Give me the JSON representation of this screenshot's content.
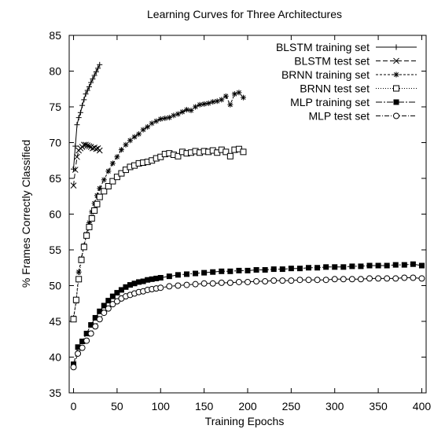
{
  "chart_data": {
    "type": "line",
    "title": "Learning Curves for Three Architectures",
    "xlabel": "Training Epochs",
    "ylabel": "% Frames Correctly Classified",
    "xlim": [
      -5,
      405
    ],
    "ylim": [
      35,
      85
    ],
    "xticks": [
      0,
      50,
      100,
      150,
      200,
      250,
      300,
      350,
      400
    ],
    "yticks": [
      35,
      40,
      45,
      50,
      55,
      60,
      65,
      70,
      75,
      80,
      85
    ],
    "grid": false,
    "legend_position": "top-right",
    "series": [
      {
        "name": "BLSTM training set",
        "marker": "plus",
        "dash": "",
        "x": [
          0,
          2,
          4,
          6,
          8,
          10,
          12,
          14,
          16,
          18,
          20,
          22,
          24,
          26,
          28,
          30
        ],
        "y": [
          66.3,
          69.5,
          72.5,
          73.5,
          74.2,
          75.2,
          76.0,
          76.8,
          77.3,
          77.8,
          78.4,
          78.9,
          79.4,
          79.9,
          80.4,
          80.9
        ]
      },
      {
        "name": "BLSTM test set",
        "marker": "x",
        "dash": "6,3",
        "x": [
          0,
          2,
          4,
          6,
          8,
          10,
          12,
          14,
          16,
          18,
          20,
          22,
          24,
          26,
          28,
          30
        ],
        "y": [
          64.0,
          66.2,
          68.0,
          68.9,
          69.2,
          69.4,
          69.7,
          69.7,
          69.6,
          69.5,
          69.4,
          69.2,
          69.3,
          69.1,
          69.2,
          68.9
        ]
      },
      {
        "name": "BRNN training set",
        "marker": "star",
        "dash": "3,2",
        "x": [
          0,
          3,
          6,
          9,
          12,
          15,
          18,
          21,
          24,
          27,
          30,
          35,
          40,
          45,
          50,
          55,
          60,
          65,
          70,
          75,
          80,
          85,
          90,
          95,
          100,
          105,
          110,
          115,
          120,
          125,
          130,
          135,
          140,
          145,
          150,
          155,
          160,
          165,
          170,
          175,
          180,
          185,
          190,
          195
        ],
        "y": [
          45.5,
          47.8,
          51.9,
          53.8,
          55.6,
          57.2,
          58.8,
          60.3,
          61.5,
          62.6,
          63.6,
          64.8,
          66.0,
          67.1,
          68.0,
          69.0,
          69.7,
          70.3,
          70.8,
          71.2,
          71.8,
          72.2,
          72.7,
          73.0,
          73.3,
          73.4,
          73.5,
          73.8,
          74.0,
          74.3,
          74.6,
          74.5,
          75.0,
          75.3,
          75.4,
          75.5,
          75.7,
          75.8,
          76.0,
          76.5,
          75.3,
          76.8,
          77.0,
          76.3
        ]
      },
      {
        "name": "BRNN test set",
        "marker": "square-open",
        "dash": "1,2",
        "x": [
          0,
          3,
          6,
          9,
          12,
          15,
          18,
          21,
          24,
          27,
          30,
          35,
          40,
          45,
          50,
          55,
          60,
          65,
          70,
          75,
          80,
          85,
          90,
          95,
          100,
          105,
          110,
          115,
          120,
          125,
          130,
          135,
          140,
          145,
          150,
          155,
          160,
          165,
          170,
          175,
          180,
          185,
          190,
          195
        ],
        "y": [
          45.3,
          48.0,
          50.9,
          53.6,
          55.4,
          57.0,
          58.2,
          59.4,
          60.5,
          61.4,
          62.4,
          63.2,
          63.9,
          64.6,
          65.2,
          65.7,
          66.2,
          66.6,
          66.8,
          67.1,
          67.2,
          67.3,
          67.5,
          67.8,
          68.0,
          68.4,
          68.5,
          68.3,
          68.1,
          68.7,
          68.5,
          68.6,
          68.8,
          68.6,
          68.8,
          68.7,
          68.9,
          68.6,
          69.0,
          68.7,
          68.1,
          69.0,
          69.1,
          68.7
        ]
      },
      {
        "name": "MLP training set",
        "marker": "square-filled",
        "dash": "8,2,2,2",
        "x": [
          0,
          5,
          10,
          15,
          20,
          25,
          30,
          35,
          40,
          45,
          50,
          55,
          60,
          65,
          70,
          75,
          80,
          85,
          90,
          95,
          100,
          110,
          120,
          130,
          140,
          150,
          160,
          170,
          180,
          190,
          200,
          210,
          220,
          230,
          240,
          250,
          260,
          270,
          280,
          290,
          300,
          310,
          320,
          330,
          340,
          350,
          360,
          370,
          380,
          390,
          400
        ],
        "y": [
          39.0,
          41.4,
          42.2,
          43.3,
          44.5,
          45.5,
          46.4,
          47.2,
          47.9,
          48.5,
          49.0,
          49.4,
          49.8,
          50.1,
          50.3,
          50.5,
          50.6,
          50.8,
          50.9,
          51.0,
          51.1,
          51.3,
          51.5,
          51.6,
          51.7,
          51.8,
          51.9,
          52.0,
          52.0,
          52.1,
          52.1,
          52.2,
          52.2,
          52.3,
          52.3,
          52.4,
          52.4,
          52.5,
          52.5,
          52.6,
          52.6,
          52.6,
          52.7,
          52.7,
          52.8,
          52.8,
          52.8,
          52.9,
          52.9,
          53.0,
          52.8
        ]
      },
      {
        "name": "MLP test set",
        "marker": "circle-open",
        "dash": "6,2,1,2",
        "x": [
          0,
          5,
          10,
          15,
          20,
          25,
          30,
          35,
          40,
          45,
          50,
          55,
          60,
          65,
          70,
          75,
          80,
          85,
          90,
          95,
          100,
          110,
          120,
          130,
          140,
          150,
          160,
          170,
          180,
          190,
          200,
          210,
          220,
          230,
          240,
          250,
          260,
          270,
          280,
          290,
          300,
          310,
          320,
          330,
          340,
          350,
          360,
          370,
          380,
          390,
          400
        ],
        "y": [
          38.6,
          40.5,
          41.3,
          42.3,
          43.3,
          44.3,
          45.3,
          46.2,
          46.8,
          47.4,
          47.8,
          48.2,
          48.5,
          48.7,
          48.9,
          49.1,
          49.2,
          49.4,
          49.5,
          49.6,
          49.7,
          49.9,
          50.0,
          50.1,
          50.2,
          50.3,
          50.3,
          50.4,
          50.4,
          50.5,
          50.5,
          50.6,
          50.6,
          50.7,
          50.7,
          50.7,
          50.8,
          50.8,
          50.8,
          50.8,
          50.9,
          50.9,
          50.9,
          50.9,
          51.0,
          51.0,
          51.0,
          51.0,
          51.1,
          51.1,
          51.0
        ]
      }
    ]
  }
}
